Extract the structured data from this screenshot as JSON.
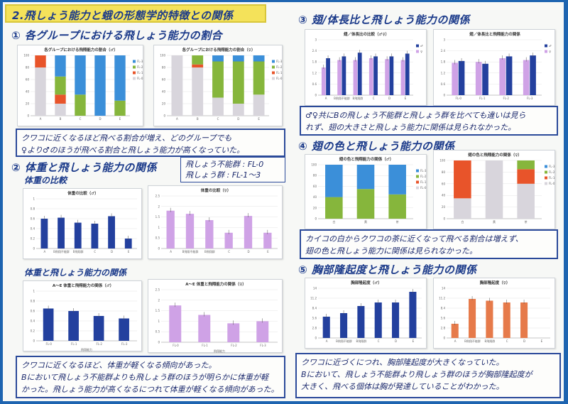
{
  "title": "2.飛しょう能力と蛾の形態学的特徴との関係",
  "sections": {
    "s1": {
      "heading": "① 各グループにおける飛しょう能力の割合"
    },
    "s2": {
      "heading": "② 体重と飛しょう能力の関係",
      "sub1": "体重の比較",
      "sub2": "体重と飛しょう能力の関係"
    },
    "s3": {
      "heading": "③ 翅/体長比と飛しょう能力の関係"
    },
    "s4": {
      "heading": "④ 翅の色と飛しょう能力の関係"
    },
    "s5": {
      "heading": "⑤ 胸部隆起度と飛しょう能力の関係"
    }
  },
  "legend_box": {
    "line1": "飛しょう不能群 : FL-0",
    "line2": "飛しょう群 : FL-1〜3"
  },
  "notes": {
    "n1": [
      "クワコに近くなるほど飛べる割合が増え、どのグループでも",
      "♀より♂のほうが飛べる割合と飛しょう能力が高くなっていた。"
    ],
    "n2": [
      "クワコに近くなるほど、体重が軽くなる傾向があった。",
      "Bにおいて飛しょう不能群よりも飛しょう群のほうが明らかに体重が軽",
      "かった。飛しょう能力が高くなるにつれて体重が軽くなる傾向があった。"
    ],
    "n3": [
      "♂♀共にBの飛しょう不能群と飛しょう群を比べても違いは見ら",
      "れず、翅の大きさと飛しょう能力に関係は見られなかった。"
    ],
    "n4": [
      "カイコの白からクワコの茶に近くなって飛べる割合は増えず、",
      "翅の色と飛しょう能力に関係は見られなかった。"
    ],
    "n5": [
      "クワコに近づくにつれ、胸部隆起度が大きくなっていた。",
      "Bにおいて、飛しょう不能群より飛しょう群のほうが胸部隆起度が",
      "大きく、飛べる個体は胸が発達していることがわかった。"
    ]
  },
  "colors": {
    "bg": "#1e64b0",
    "banner": "#f4e25a",
    "ink": "#1b3a8a",
    "navy_bar": "#23409e",
    "violet_bar": "#cfa2e6",
    "orange_bar": "#e67a4a"
  },
  "chart_data": [
    {
      "id": "c1m",
      "type": "bar",
      "title": "各グループにおける飛翔能力の割合（♂）",
      "stacked": true,
      "categories": [
        "A",
        "B",
        "C",
        "D",
        "E"
      ],
      "ylim": [
        0,
        100
      ],
      "series": [
        {
          "name": "FL-0",
          "color": "#d8d5dc",
          "values": [
            80,
            20,
            0,
            0,
            0
          ]
        },
        {
          "name": "FL-1",
          "color": "#e8542a",
          "values": [
            20,
            15,
            0,
            0,
            0
          ]
        },
        {
          "name": "FL-2",
          "color": "#86b63c",
          "values": [
            0,
            30,
            35,
            0,
            25
          ]
        },
        {
          "name": "FL-3",
          "color": "#3b8fd9",
          "values": [
            0,
            35,
            65,
            100,
            75
          ]
        }
      ]
    },
    {
      "id": "c1f",
      "type": "bar",
      "title": "各グループにおける飛翔能力の割合（♀）",
      "stacked": true,
      "categories": [
        "A",
        "B",
        "C",
        "D",
        "E"
      ],
      "ylim": [
        0,
        100
      ],
      "series": [
        {
          "name": "FL-0",
          "color": "#d8d5dc",
          "values": [
            100,
            80,
            30,
            20,
            35
          ]
        },
        {
          "name": "FL-1",
          "color": "#e8542a",
          "values": [
            0,
            5,
            0,
            0,
            0
          ]
        },
        {
          "name": "FL-2",
          "color": "#86b63c",
          "values": [
            0,
            15,
            60,
            70,
            55
          ]
        },
        {
          "name": "FL-3",
          "color": "#3b8fd9",
          "values": [
            0,
            0,
            10,
            10,
            10
          ]
        }
      ]
    },
    {
      "id": "c2m",
      "type": "bar",
      "title": "体重の比較（♂）",
      "categories": [
        "A",
        "B飛翔不能群",
        "B飛翔群",
        "C",
        "D",
        "E"
      ],
      "ylim": [
        0,
        1.0
      ],
      "series": [
        {
          "name": "",
          "color": "#23409e",
          "values": [
            0.6,
            0.62,
            0.52,
            0.5,
            0.65,
            0.2
          ]
        }
      ]
    },
    {
      "id": "c2f",
      "type": "bar",
      "title": "体重の比較（♀）",
      "categories": [
        "A",
        "B飛翔不能群",
        "B飛翔群",
        "C",
        "D",
        "E"
      ],
      "ylim": [
        0,
        2.5
      ],
      "series": [
        {
          "name": "",
          "color": "#cfa2e6",
          "values": [
            1.8,
            1.65,
            1.35,
            0.75,
            1.55,
            0.75
          ]
        }
      ]
    },
    {
      "id": "c3m",
      "type": "bar",
      "title": "A〜E 体重と飛翔能力の関係（♂）",
      "categories": [
        "FL-0",
        "FL-1",
        "FL-2",
        "FL-3"
      ],
      "xlabel": "飛翔能力",
      "ylim": [
        0,
        1.0
      ],
      "series": [
        {
          "name": "",
          "color": "#23409e",
          "values": [
            0.65,
            0.6,
            0.5,
            0.45
          ]
        }
      ]
    },
    {
      "id": "c3f",
      "type": "bar",
      "title": "A〜E 体重と飛翔能力の関係（♀）",
      "categories": [
        "FL-0",
        "FL-1",
        "FL-2",
        "FL-3"
      ],
      "xlabel": "飛翔能力",
      "ylim": [
        0,
        2.5
      ],
      "series": [
        {
          "name": "",
          "color": "#cfa2e6",
          "values": [
            1.75,
            1.3,
            0.9,
            1.0
          ]
        }
      ]
    },
    {
      "id": "c4m",
      "type": "bar",
      "title": "翅／体長比の比較（♂♀）",
      "categories": [
        "A",
        "B飛翔不能群",
        "B飛翔群",
        "C",
        "D",
        "E"
      ],
      "ylim": [
        0,
        3.0
      ],
      "series": [
        {
          "name": "♀",
          "color": "#cfa2e6",
          "values": [
            1.5,
            1.9,
            1.9,
            2.0,
            1.95,
            1.9
          ]
        },
        {
          "name": "♂",
          "color": "#23409e",
          "values": [
            2.0,
            2.1,
            2.3,
            2.1,
            2.1,
            2.25
          ]
        }
      ]
    },
    {
      "id": "c4f",
      "type": "bar",
      "title": "翅／体長比と飛翔能力の関係",
      "categories": [
        "FL-0",
        "FL-1",
        "FL-2",
        "FL-3"
      ],
      "ylim": [
        0,
        3.0
      ],
      "series": [
        {
          "name": "♀",
          "color": "#cfa2e6",
          "values": [
            1.75,
            1.8,
            2.0,
            1.9
          ]
        },
        {
          "name": "♂",
          "color": "#23409e",
          "values": [
            1.85,
            1.7,
            2.1,
            2.15
          ]
        }
      ]
    },
    {
      "id": "c5m",
      "type": "bar",
      "title": "翅の色と飛翔能力の関係（♂）",
      "stacked": true,
      "categories": [
        "白",
        "黄",
        "茶"
      ],
      "ylim": [
        0,
        100
      ],
      "series": [
        {
          "name": "FL-0",
          "color": "#d8d5dc",
          "values": [
            0,
            0,
            0
          ]
        },
        {
          "name": "FL-1",
          "color": "#e8542a",
          "values": [
            0,
            0,
            0
          ]
        },
        {
          "name": "FL-2",
          "color": "#86b63c",
          "values": [
            40,
            55,
            45
          ]
        },
        {
          "name": "FL-3",
          "color": "#3b8fd9",
          "values": [
            60,
            45,
            55
          ]
        }
      ]
    },
    {
      "id": "c5f",
      "type": "bar",
      "title": "翅の色と飛翔能力の関係（♀）",
      "stacked": true,
      "categories": [
        "白",
        "黄",
        "茶"
      ],
      "ylim": [
        0,
        100
      ],
      "series": [
        {
          "name": "FL-0",
          "color": "#d8d5dc",
          "values": [
            35,
            100,
            60
          ]
        },
        {
          "name": "FL-1",
          "color": "#e8542a",
          "values": [
            65,
            0,
            25
          ]
        },
        {
          "name": "FL-2",
          "color": "#86b63c",
          "values": [
            0,
            0,
            15
          ]
        },
        {
          "name": "FL-3",
          "color": "#3b8fd9",
          "values": [
            0,
            0,
            0
          ]
        }
      ]
    },
    {
      "id": "c6m",
      "type": "bar",
      "title": "胸部隆起度（♂）",
      "categories": [
        "A",
        "B飛翔不能群",
        "B飛翔群",
        "C",
        "D",
        "E"
      ],
      "ylim": [
        0,
        14
      ],
      "series": [
        {
          "name": "",
          "color": "#23409e",
          "values": [
            6,
            7,
            9,
            10,
            10,
            13
          ]
        }
      ]
    },
    {
      "id": "c6f",
      "type": "bar",
      "title": "胸部隆起度（♀）",
      "categories": [
        "A",
        "B飛翔不能群",
        "B飛翔群",
        "C",
        "D",
        "E"
      ],
      "ylim": [
        0,
        14
      ],
      "series": [
        {
          "name": "",
          "color": "#e67a4a",
          "values": [
            4,
            11,
            10.5,
            10,
            10,
            0
          ]
        }
      ]
    }
  ]
}
